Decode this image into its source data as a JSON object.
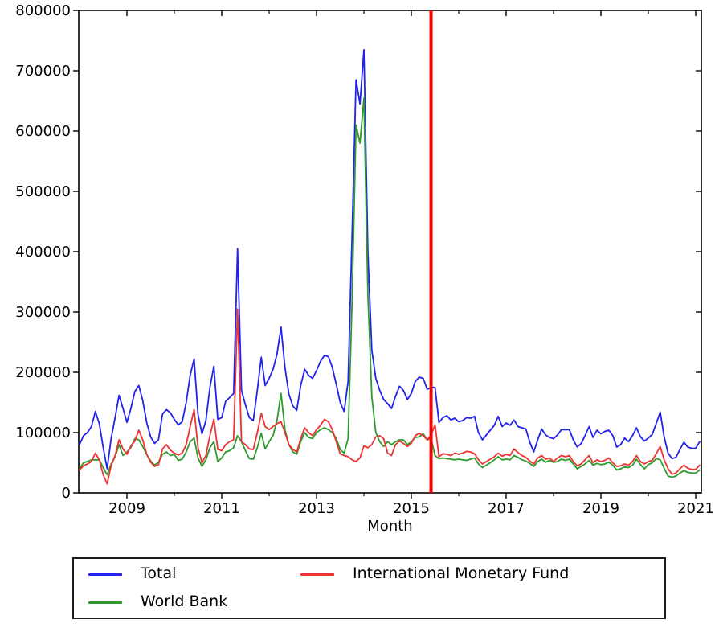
{
  "figure": {
    "background": "#ffffff"
  },
  "chart_data": {
    "type": "line",
    "title": "",
    "xlabel": "Month",
    "ylabel": "",
    "x_unit": "month",
    "x_start": "2008-01",
    "x_end": "2021-02",
    "ylim": [
      0,
      800000
    ],
    "grid": false,
    "legend_position": "bottom",
    "y_ticks": [
      0,
      100000,
      200000,
      300000,
      400000,
      500000,
      600000,
      700000,
      800000
    ],
    "y_tick_labels": [
      "0",
      "100000",
      "200000",
      "300000",
      "400000",
      "500000",
      "600000",
      "700000",
      "800000"
    ],
    "x_major_tick_years": [
      2009,
      2011,
      2013,
      2015,
      2017,
      2019,
      2021
    ],
    "x_major_tick_labels": [
      "2009",
      "2011",
      "2013",
      "2015",
      "2017",
      "2019",
      "2021"
    ],
    "x_minor_tick_years": [
      2010,
      2012,
      2014,
      2016,
      2018,
      2020
    ],
    "annotations": [
      {
        "type": "vline",
        "x": "2015-06",
        "color": "#ff0000",
        "width": 4
      }
    ],
    "series": [
      {
        "name": "Total",
        "color": "#2222ee",
        "values": [
          80000,
          95000,
          100000,
          110000,
          135000,
          115000,
          75000,
          40000,
          90000,
          125000,
          162000,
          140000,
          117000,
          140000,
          168000,
          178000,
          153000,
          117000,
          93000,
          82000,
          88000,
          131000,
          138000,
          133000,
          122000,
          113000,
          118000,
          150000,
          195000,
          222000,
          130000,
          98000,
          120000,
          175000,
          210000,
          122000,
          125000,
          152000,
          158000,
          165000,
          405000,
          170000,
          146000,
          125000,
          120000,
          170000,
          225000,
          178000,
          190000,
          205000,
          230000,
          275000,
          208000,
          164000,
          144000,
          137000,
          178000,
          205000,
          195000,
          190000,
          203000,
          218000,
          228000,
          226000,
          208000,
          180000,
          150000,
          135000,
          185000,
          430000,
          685000,
          645000,
          735000,
          400000,
          237000,
          190000,
          170000,
          155000,
          148000,
          140000,
          160000,
          177000,
          170000,
          155000,
          165000,
          185000,
          192000,
          190000,
          172000,
          175000,
          175000,
          117000,
          125000,
          128000,
          121000,
          124000,
          118000,
          120000,
          125000,
          124000,
          127000,
          100000,
          88000,
          96000,
          104000,
          112000,
          127000,
          110000,
          116000,
          112000,
          121000,
          110000,
          108000,
          106000,
          84000,
          68000,
          88000,
          106000,
          96000,
          92000,
          90000,
          96000,
          105000,
          105000,
          105000,
          88000,
          76000,
          82000,
          95000,
          110000,
          92000,
          104000,
          98000,
          102000,
          104000,
          95000,
          76000,
          80000,
          91000,
          85000,
          95000,
          108000,
          93000,
          86000,
          91000,
          97000,
          115000,
          134000,
          93000,
          66000,
          57000,
          59000,
          72000,
          84000,
          76000,
          74000,
          74000,
          85000
        ]
      },
      {
        "name": "World Bank",
        "color": "#2d9b2d",
        "values": [
          40000,
          50000,
          52000,
          55000,
          55000,
          55000,
          42000,
          30000,
          48000,
          60000,
          80000,
          62000,
          68000,
          75000,
          90000,
          88000,
          77000,
          64000,
          53000,
          46000,
          51000,
          64000,
          68000,
          62000,
          64000,
          54000,
          56000,
          68000,
          85000,
          91000,
          58000,
          44000,
          55000,
          75000,
          85000,
          52000,
          58000,
          68000,
          70000,
          75000,
          95000,
          85000,
          70000,
          57000,
          56000,
          75000,
          99000,
          73000,
          85000,
          95000,
          120000,
          165000,
          105000,
          80000,
          68000,
          64000,
          85000,
          100000,
          92000,
          90000,
          100000,
          105000,
          108000,
          105000,
          100000,
          90000,
          72000,
          66000,
          90000,
          320000,
          610000,
          580000,
          655000,
          330000,
          160000,
          100000,
          85000,
          77000,
          85000,
          80000,
          85000,
          88000,
          88000,
          80000,
          85000,
          92000,
          93000,
          98000,
          88000,
          90000,
          62000,
          57000,
          58000,
          57000,
          56000,
          55000,
          56000,
          55000,
          54000,
          56000,
          58000,
          48000,
          42000,
          46000,
          50000,
          55000,
          60000,
          55000,
          56000,
          55000,
          62000,
          59000,
          55000,
          53000,
          49000,
          44000,
          52000,
          56000,
          51000,
          54000,
          51000,
          52000,
          56000,
          54000,
          56000,
          48000,
          40000,
          44000,
          48000,
          54000,
          46000,
          49000,
          47000,
          48000,
          51000,
          46000,
          38000,
          40000,
          43000,
          42000,
          46000,
          56000,
          47000,
          40000,
          47000,
          50000,
          57000,
          55000,
          41000,
          28000,
          26000,
          28000,
          33000,
          37000,
          34000,
          33000,
          33000,
          38000
        ]
      },
      {
        "name": "International Monetary Fund",
        "color": "#ee3333",
        "values": [
          38000,
          45000,
          48000,
          52000,
          66000,
          55000,
          30000,
          15000,
          45000,
          62000,
          88000,
          73000,
          64000,
          78000,
          86000,
          104000,
          88000,
          64000,
          51000,
          44000,
          47000,
          73000,
          80000,
          71000,
          66000,
          63000,
          66000,
          80000,
          110000,
          138000,
          75000,
          50000,
          62000,
          95000,
          122000,
          72000,
          70000,
          80000,
          85000,
          88000,
          305000,
          85000,
          80000,
          73000,
          72000,
          100000,
          132000,
          110000,
          105000,
          110000,
          115000,
          118000,
          100000,
          80000,
          72000,
          68000,
          90000,
          108000,
          100000,
          95000,
          105000,
          112000,
          122000,
          118000,
          105000,
          85000,
          65000,
          62000,
          60000,
          55000,
          52000,
          58000,
          78000,
          75000,
          80000,
          93000,
          95000,
          90000,
          66000,
          62000,
          80000,
          86000,
          82000,
          77000,
          82000,
          95000,
          99000,
          95000,
          88000,
          96000,
          113000,
          60000,
          65000,
          64000,
          62000,
          66000,
          64000,
          66000,
          69000,
          68000,
          65000,
          55000,
          48000,
          52000,
          56000,
          60000,
          66000,
          61000,
          64000,
          62000,
          73000,
          67000,
          62000,
          59000,
          53000,
          48000,
          58000,
          62000,
          56000,
          58000,
          52000,
          58000,
          62000,
          60000,
          62000,
          52000,
          45000,
          48000,
          55000,
          62000,
          50000,
          55000,
          52000,
          54000,
          58000,
          50000,
          44000,
          45000,
          48000,
          46000,
          52000,
          62000,
          52000,
          48000,
          52000,
          54000,
          65000,
          77000,
          55000,
          40000,
          31000,
          33000,
          40000,
          46000,
          41000,
          39000,
          39000,
          46000
        ]
      }
    ]
  },
  "legend": {
    "entries": [
      {
        "label": "Total",
        "color": "#2222ee"
      },
      {
        "label": "World Bank",
        "color": "#2d9b2d"
      },
      {
        "label": "International Monetary Fund",
        "color": "#ee3333"
      }
    ]
  }
}
